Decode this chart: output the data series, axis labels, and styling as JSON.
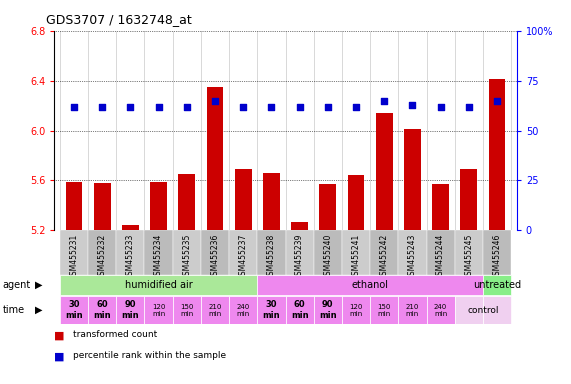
{
  "title": "GDS3707 / 1632748_at",
  "samples": [
    "GSM455231",
    "GSM455232",
    "GSM455233",
    "GSM455234",
    "GSM455235",
    "GSM455236",
    "GSM455237",
    "GSM455238",
    "GSM455239",
    "GSM455240",
    "GSM455241",
    "GSM455242",
    "GSM455243",
    "GSM455244",
    "GSM455245",
    "GSM455246"
  ],
  "transformed_count": [
    5.59,
    5.58,
    5.24,
    5.59,
    5.65,
    6.35,
    5.69,
    5.66,
    5.27,
    5.57,
    5.64,
    6.14,
    6.01,
    5.57,
    5.69,
    6.41
  ],
  "percentile_rank": [
    62,
    62,
    62,
    62,
    62,
    65,
    62,
    62,
    62,
    62,
    62,
    65,
    63,
    62,
    62,
    65
  ],
  "ylim_left": [
    5.2,
    6.8
  ],
  "ylim_right": [
    0,
    100
  ],
  "yticks_left": [
    5.2,
    5.6,
    6.0,
    6.4,
    6.8
  ],
  "yticks_right": [
    0,
    25,
    50,
    75,
    100
  ],
  "bar_color": "#cc0000",
  "dot_color": "#0000cc",
  "agent_groups": [
    {
      "label": "humidified air",
      "start": 0,
      "end": 7,
      "color": "#aae899"
    },
    {
      "label": "ethanol",
      "start": 7,
      "end": 15,
      "color": "#ee88ee"
    },
    {
      "label": "untreated",
      "start": 15,
      "end": 16,
      "color": "#88ee88"
    }
  ],
  "time_labels": [
    "30\nmin",
    "60\nmin",
    "90\nmin",
    "120\nmin",
    "150\nmin",
    "210\nmin",
    "240\nmin",
    "30\nmin",
    "60\nmin",
    "90\nmin",
    "120\nmin",
    "150\nmin",
    "210\nmin",
    "240\nmin"
  ],
  "time_colors_bold": [
    true,
    true,
    true,
    false,
    false,
    false,
    false,
    true,
    true,
    true,
    false,
    false,
    false,
    false
  ],
  "time_row_color": "#ee88ee",
  "control_label": "control",
  "control_color": "#f0d0f0",
  "sample_bg_color": "#cccccc",
  "grid_color": "#000000",
  "background_color": "#ffffff"
}
